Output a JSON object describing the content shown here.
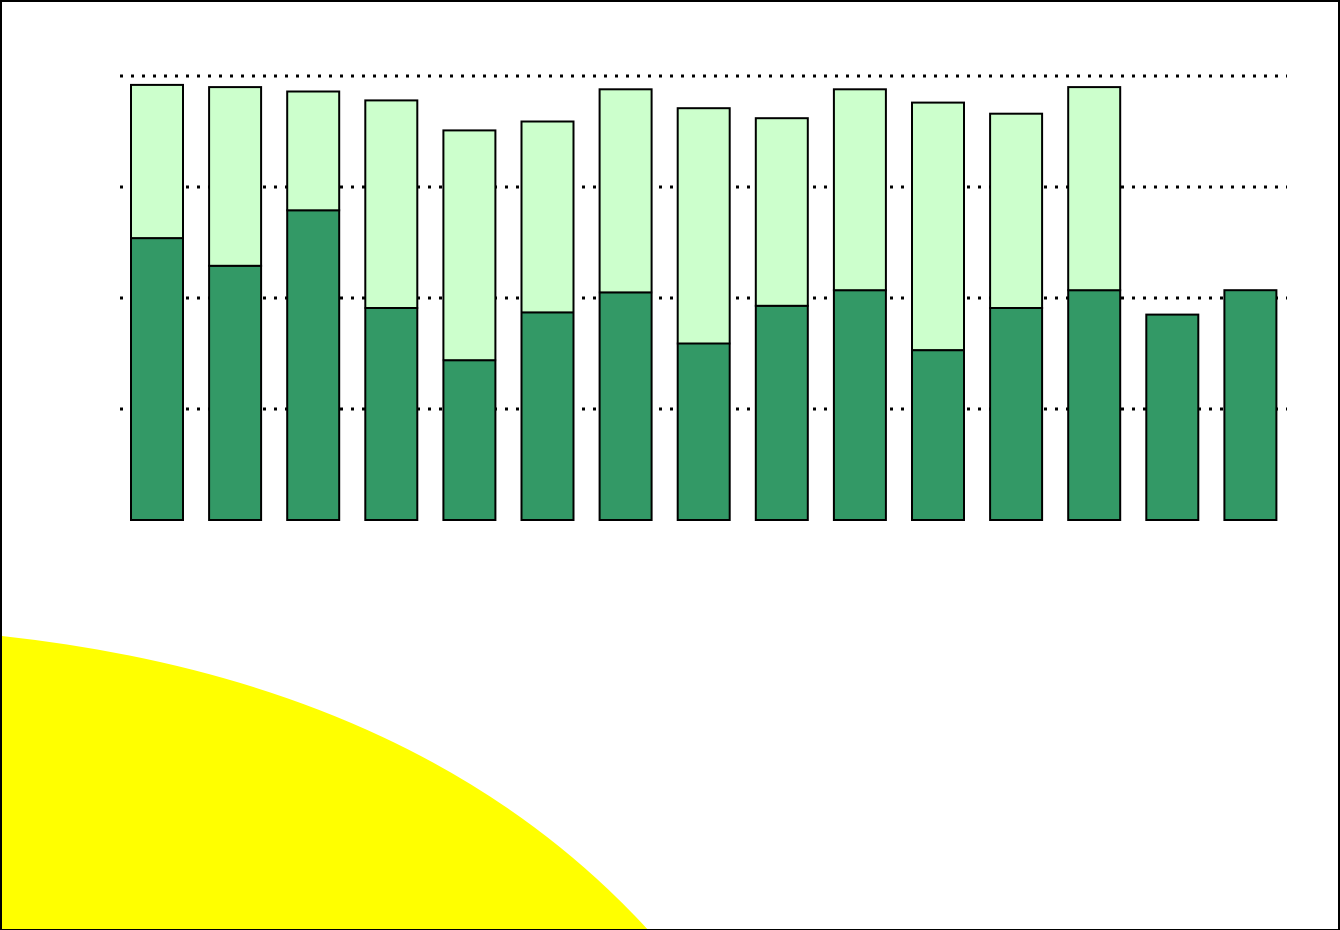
{
  "chart_data": {
    "type": "bar",
    "stacked": true,
    "categories": [
      "",
      "",
      "",
      "",
      "",
      "",
      "",
      "",
      "",
      "",
      "",
      "",
      "",
      "",
      ""
    ],
    "series": [
      {
        "color": "#339966",
        "values": [
          254,
          229,
          279,
          191,
          144,
          187,
          205,
          159,
          193,
          207,
          153,
          191,
          207,
          185,
          207
        ]
      },
      {
        "color": "#ccffcc",
        "values": [
          138,
          161,
          107,
          187,
          207,
          172,
          183,
          212,
          169,
          181,
          223,
          175,
          183,
          0,
          0
        ]
      }
    ],
    "ylim": [
      0,
      400
    ],
    "yticks": [
      100,
      200,
      300,
      400
    ],
    "grid": true,
    "grid_style": "dotted",
    "legend": "none",
    "title": "",
    "xlabel": "",
    "ylabel": ""
  },
  "decoration": {
    "shape": "quarter-circle",
    "color": "#ffff00"
  }
}
